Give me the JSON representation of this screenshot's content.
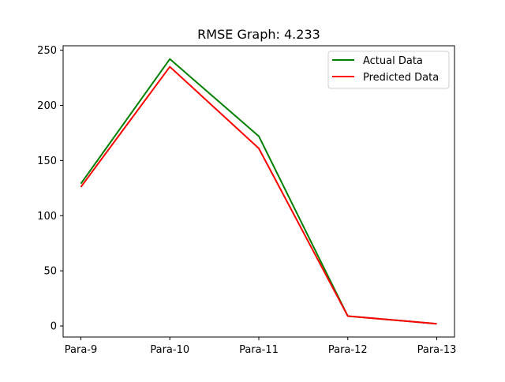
{
  "chart_data": {
    "type": "line",
    "title": "RMSE Graph: 4.233",
    "xlabel": "",
    "ylabel": "",
    "categories": [
      "Para-9",
      "Para-10",
      "Para-11",
      "Para-12",
      "Para-13"
    ],
    "ylim": [
      -10,
      254
    ],
    "yticks": [
      0,
      50,
      100,
      150,
      200,
      250
    ],
    "grid": false,
    "legend_position": "upper right",
    "series": [
      {
        "name": "Actual Data",
        "color": "#008000",
        "values": [
          129,
          242,
          172,
          9,
          2
        ]
      },
      {
        "name": "Predicted Data",
        "color": "#ff0000",
        "values": [
          126,
          235,
          161,
          9,
          2
        ]
      }
    ]
  }
}
